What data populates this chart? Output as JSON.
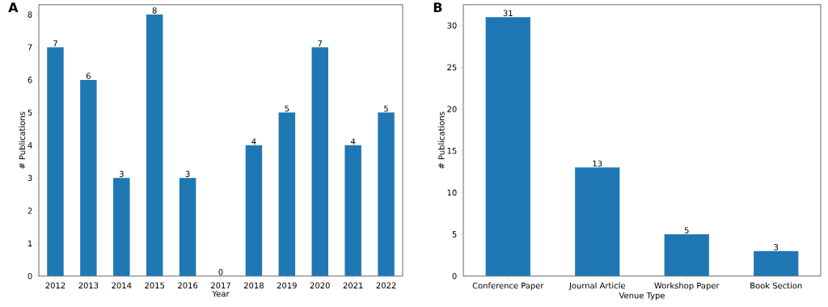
{
  "chart_data": [
    {
      "type": "bar",
      "title": "A",
      "xlabel": "Year",
      "ylabel": "# Publications",
      "categories": [
        "2012",
        "2013",
        "2014",
        "2015",
        "2016",
        "2017",
        "2018",
        "2019",
        "2020",
        "2021",
        "2022"
      ],
      "values": [
        7,
        6,
        3,
        8,
        3,
        0,
        4,
        5,
        7,
        4,
        5
      ],
      "color": "#1f77b4",
      "ylim": [
        0,
        8.3
      ],
      "yticks": [
        0,
        1,
        2,
        3,
        4,
        5,
        6,
        7,
        8
      ],
      "data_labels": true
    },
    {
      "type": "bar",
      "title": "B",
      "xlabel": "Venue Type",
      "ylabel": "# Publications",
      "categories": [
        "Conference Paper",
        "Journal Article",
        "Workshop Paper",
        "Book Section"
      ],
      "values": [
        31,
        13,
        5,
        3
      ],
      "color": "#1f77b4",
      "ylim": [
        0,
        32.5
      ],
      "yticks": [
        0,
        5,
        10,
        15,
        20,
        25,
        30
      ],
      "data_labels": true
    }
  ]
}
